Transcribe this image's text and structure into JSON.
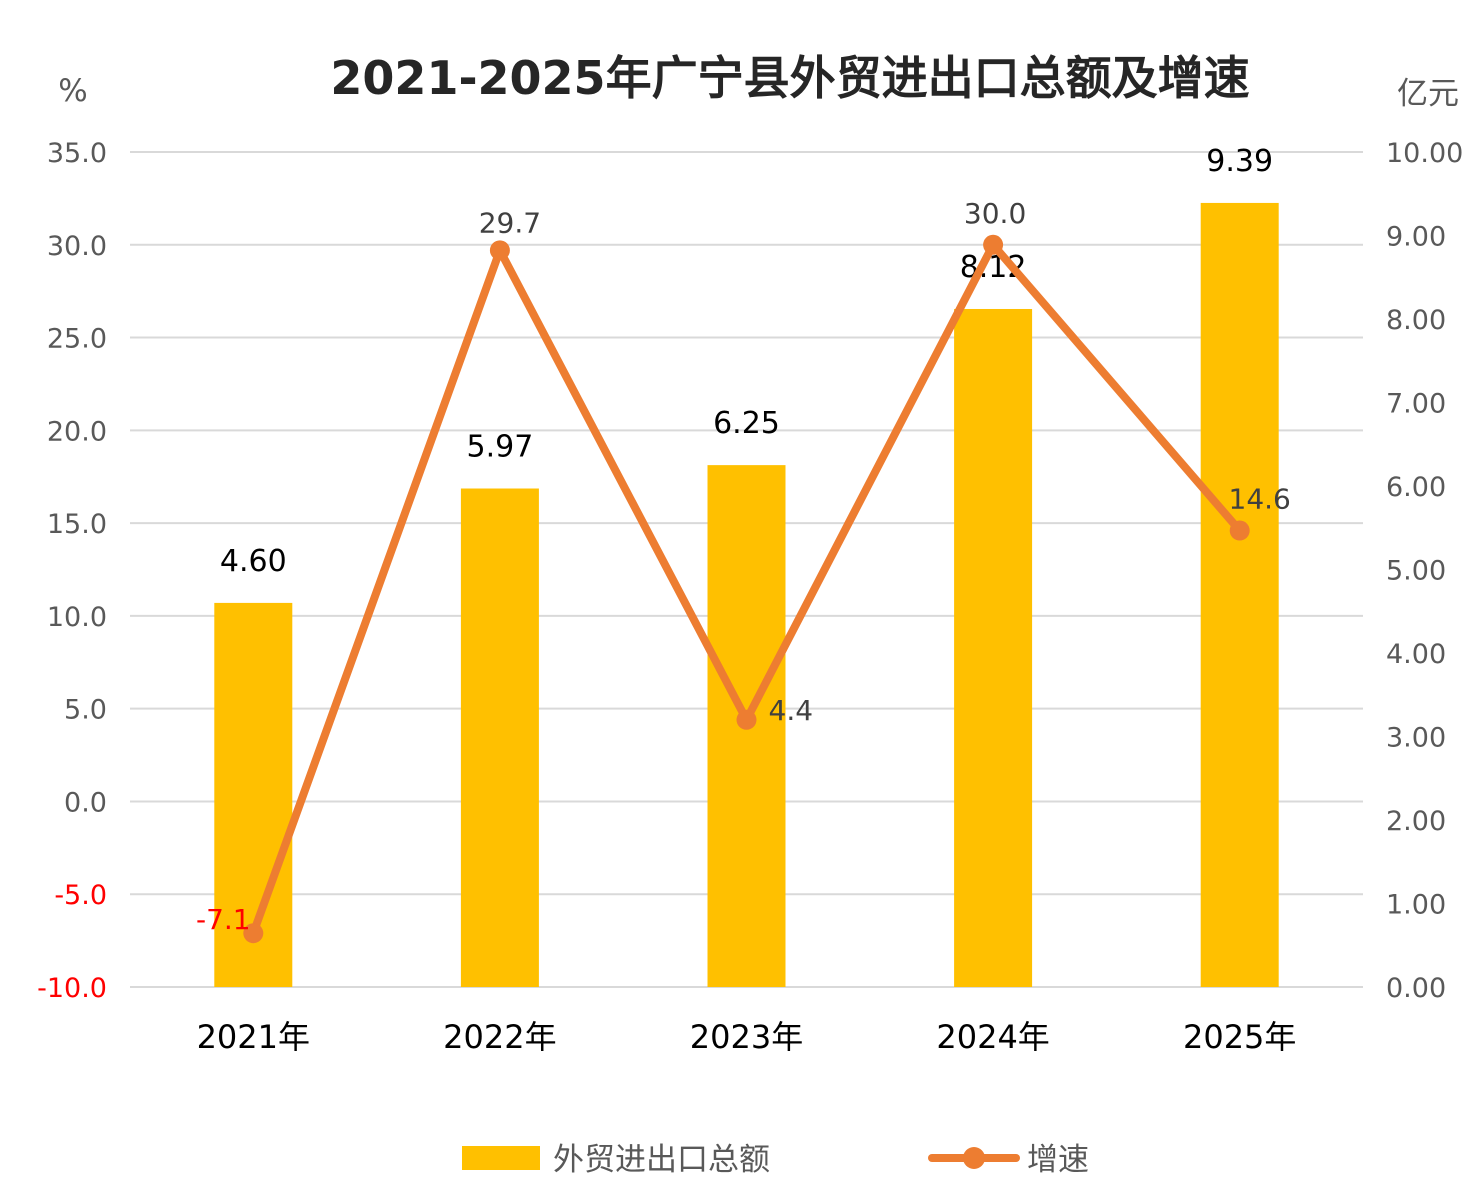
{
  "chart_data": {
    "type": "bar+line",
    "title": "2021-2025年广宁县外贸进出口总额及增速",
    "categories": [
      "2021年",
      "2022年",
      "2023年",
      "2024年",
      "2025年"
    ],
    "left_axis": {
      "unit": "%",
      "ylim": [
        -10,
        35
      ],
      "ticks": [
        "35.0",
        "30.0",
        "25.0",
        "20.0",
        "15.0",
        "10.0",
        "5.0",
        "0.0",
        "-5.0",
        "-10.0"
      ],
      "negative_color": "#ff0000"
    },
    "right_axis": {
      "unit": "亿元",
      "ylim": [
        0,
        10
      ],
      "ticks": [
        "10.00",
        "9.00",
        "8.00",
        "7.00",
        "6.00",
        "5.00",
        "4.00",
        "3.00",
        "2.00",
        "1.00",
        "0.00"
      ]
    },
    "series": [
      {
        "name": "外贸进出口总额",
        "type": "bar",
        "axis": "right",
        "color": "#ffc000",
        "values": [
          4.6,
          5.97,
          6.25,
          8.12,
          9.39
        ],
        "labels": [
          "4.60",
          "5.97",
          "6.25",
          "8.12",
          "9.39"
        ]
      },
      {
        "name": "增速",
        "type": "line",
        "axis": "left",
        "color": "#ed7d31",
        "values": [
          -7.1,
          29.7,
          4.4,
          30.0,
          14.6
        ],
        "labels": [
          "-7.1",
          "29.7",
          "4.4",
          "30.0",
          "14.6"
        ]
      }
    ],
    "grid": true,
    "legend": "bottom"
  }
}
